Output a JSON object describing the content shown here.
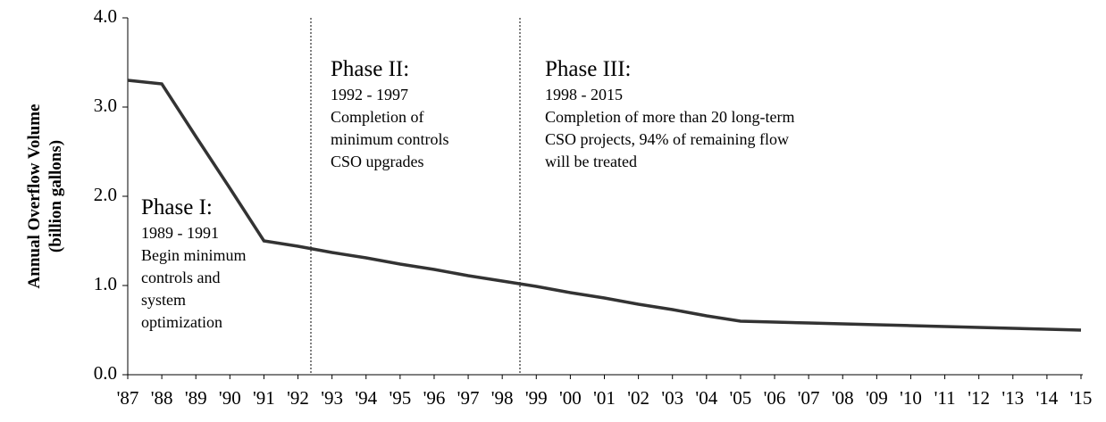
{
  "chart_data": {
    "type": "line",
    "y_label": [
      "Annual Overflow Volume",
      "(billion gallons)"
    ],
    "categories": [
      "'87",
      "'88",
      "'89",
      "'90",
      "'91",
      "'92",
      "'93",
      "'94",
      "'95",
      "'96",
      "'97",
      "'98",
      "'99",
      "'00",
      "'01",
      "'02",
      "'03",
      "'04",
      "'05",
      "'06",
      "'07",
      "'08",
      "'09",
      "'10",
      "'11",
      "'12",
      "'13",
      "'14",
      "'15"
    ],
    "values": [
      3.3,
      3.26,
      2.67,
      2.09,
      1.5,
      1.44,
      1.37,
      1.31,
      1.24,
      1.18,
      1.11,
      1.05,
      0.99,
      0.92,
      0.86,
      0.79,
      0.73,
      0.66,
      0.6,
      0.59,
      0.58,
      0.57,
      0.56,
      0.55,
      0.54,
      0.53,
      0.52,
      0.51,
      0.5
    ],
    "color": "#333333",
    "ylim": [
      0,
      4
    ],
    "yticks": [
      {
        "value": 0,
        "label": "0.0"
      },
      {
        "value": 1,
        "label": "1.0"
      },
      {
        "value": 2,
        "label": "2.0"
      },
      {
        "value": 3,
        "label": "3.0"
      },
      {
        "value": 4,
        "label": "4.0"
      }
    ],
    "annotations": [
      {
        "title": "Phase I:",
        "lines": [
          "1989 - 1991",
          "Begin minimum",
          "controls and",
          "system",
          "optimization"
        ]
      },
      {
        "title": "Phase II:",
        "lines": [
          "1992 - 1997",
          "Completion of",
          "minimum controls",
          "CSO upgrades"
        ]
      },
      {
        "title": "Phase III:",
        "lines": [
          "1998 - 2015",
          "Completion of more than 20 long-term",
          "CSO projects, 94% of remaining flow",
          "will be treated"
        ]
      }
    ]
  }
}
